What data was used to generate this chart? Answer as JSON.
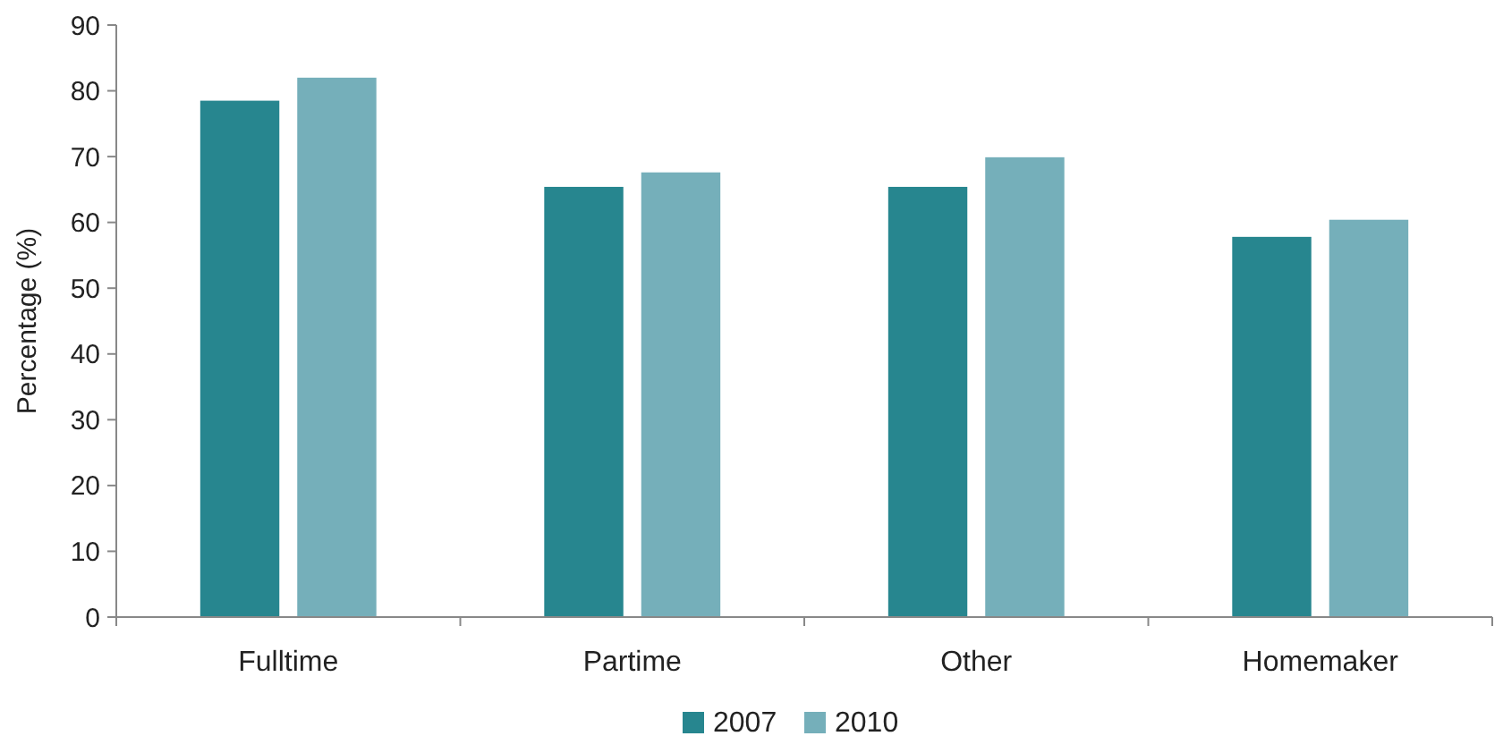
{
  "chart_data": {
    "type": "bar",
    "ylabel": "Percentage (%)",
    "categories": [
      "Fulltime",
      "Partime",
      "Other",
      "Homemaker"
    ],
    "series": [
      {
        "name": "2007",
        "color": "#27868f",
        "values": [
          78.5,
          65.4,
          65.4,
          57.8
        ]
      },
      {
        "name": "2010",
        "color": "#75afba",
        "values": [
          82.0,
          67.6,
          69.9,
          60.4
        ]
      }
    ],
    "ylim": [
      0,
      90
    ],
    "yticks": [
      0,
      10,
      20,
      30,
      40,
      50,
      60,
      70,
      80,
      90
    ],
    "grid": false,
    "legend": "bottom"
  }
}
